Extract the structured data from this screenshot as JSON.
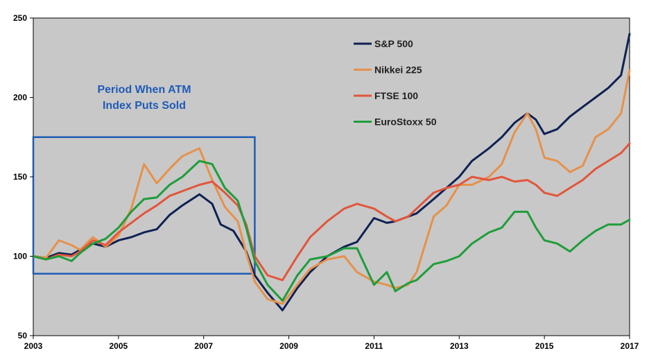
{
  "chart_data": {
    "type": "line",
    "x_unit": "year",
    "xlim": [
      2003,
      2017
    ],
    "ylim": [
      50,
      250
    ],
    "x_ticks": [
      "2003",
      "2005",
      "2007",
      "2009",
      "2011",
      "2013",
      "2015",
      "2017"
    ],
    "y_ticks": [
      "50",
      "100",
      "150",
      "200",
      "250"
    ],
    "grid": false,
    "background": "#c8c8c8",
    "legend_position": "top-center",
    "annotation": {
      "lines": [
        "Period When ATM",
        "Index Puts Sold"
      ],
      "region_x": [
        2003,
        2008.2
      ],
      "region_y": [
        89,
        175
      ],
      "color": "#1f5bb5"
    },
    "series": [
      {
        "name": "S&P 500",
        "color": "#0e2154",
        "points": [
          [
            2003.0,
            100
          ],
          [
            2003.3,
            99
          ],
          [
            2003.6,
            102
          ],
          [
            2003.9,
            101
          ],
          [
            2004.1,
            104
          ],
          [
            2004.4,
            108
          ],
          [
            2004.7,
            106
          ],
          [
            2005.0,
            110
          ],
          [
            2005.3,
            112
          ],
          [
            2005.6,
            115
          ],
          [
            2005.9,
            117
          ],
          [
            2006.2,
            126
          ],
          [
            2006.5,
            132
          ],
          [
            2006.9,
            139
          ],
          [
            2007.2,
            133
          ],
          [
            2007.4,
            120
          ],
          [
            2007.7,
            116
          ],
          [
            2008.0,
            103
          ],
          [
            2008.2,
            88
          ],
          [
            2008.5,
            77
          ],
          [
            2008.85,
            66
          ],
          [
            2009.2,
            80
          ],
          [
            2009.5,
            90
          ],
          [
            2009.9,
            100
          ],
          [
            2010.3,
            106
          ],
          [
            2010.6,
            109
          ],
          [
            2011.0,
            124
          ],
          [
            2011.3,
            121
          ],
          [
            2011.5,
            122
          ],
          [
            2011.8,
            125
          ],
          [
            2012.0,
            127
          ],
          [
            2012.4,
            136
          ],
          [
            2012.7,
            143
          ],
          [
            2013.0,
            150
          ],
          [
            2013.3,
            160
          ],
          [
            2013.7,
            168
          ],
          [
            2014.0,
            175
          ],
          [
            2014.3,
            184
          ],
          [
            2014.6,
            190
          ],
          [
            2014.8,
            186
          ],
          [
            2015.0,
            177
          ],
          [
            2015.3,
            180
          ],
          [
            2015.6,
            188
          ],
          [
            2015.9,
            194
          ],
          [
            2016.2,
            200
          ],
          [
            2016.5,
            206
          ],
          [
            2016.8,
            214
          ],
          [
            2017.0,
            240
          ]
        ]
      },
      {
        "name": "Nikkei 225",
        "color": "#e6914a",
        "points": [
          [
            2003.0,
            100
          ],
          [
            2003.3,
            99
          ],
          [
            2003.6,
            110
          ],
          [
            2003.9,
            107
          ],
          [
            2004.1,
            104
          ],
          [
            2004.4,
            112
          ],
          [
            2004.7,
            106
          ],
          [
            2005.0,
            113
          ],
          [
            2005.3,
            130
          ],
          [
            2005.6,
            158
          ],
          [
            2005.9,
            146
          ],
          [
            2006.2,
            155
          ],
          [
            2006.5,
            163
          ],
          [
            2006.9,
            168
          ],
          [
            2007.2,
            148
          ],
          [
            2007.5,
            131
          ],
          [
            2007.8,
            122
          ],
          [
            2008.0,
            102
          ],
          [
            2008.2,
            84
          ],
          [
            2008.5,
            73
          ],
          [
            2008.85,
            70
          ],
          [
            2009.2,
            82
          ],
          [
            2009.5,
            92
          ],
          [
            2009.9,
            98
          ],
          [
            2010.3,
            100
          ],
          [
            2010.6,
            90
          ],
          [
            2011.0,
            84
          ],
          [
            2011.3,
            82
          ],
          [
            2011.5,
            80
          ],
          [
            2011.8,
            82
          ],
          [
            2012.0,
            90
          ],
          [
            2012.4,
            125
          ],
          [
            2012.7,
            132
          ],
          [
            2013.0,
            145
          ],
          [
            2013.3,
            145
          ],
          [
            2013.7,
            150
          ],
          [
            2014.0,
            158
          ],
          [
            2014.3,
            178
          ],
          [
            2014.6,
            190
          ],
          [
            2014.8,
            180
          ],
          [
            2015.0,
            162
          ],
          [
            2015.3,
            160
          ],
          [
            2015.6,
            153
          ],
          [
            2015.9,
            157
          ],
          [
            2016.2,
            175
          ],
          [
            2016.5,
            180
          ],
          [
            2016.8,
            190
          ],
          [
            2017.0,
            217
          ]
        ]
      },
      {
        "name": "FTSE 100",
        "color": "#e2553b",
        "points": [
          [
            2003.0,
            100
          ],
          [
            2003.3,
            98
          ],
          [
            2003.6,
            101
          ],
          [
            2003.9,
            100
          ],
          [
            2004.1,
            103
          ],
          [
            2004.4,
            110
          ],
          [
            2004.7,
            107
          ],
          [
            2005.0,
            115
          ],
          [
            2005.3,
            121
          ],
          [
            2005.6,
            127
          ],
          [
            2005.9,
            132
          ],
          [
            2006.2,
            138
          ],
          [
            2006.5,
            141
          ],
          [
            2006.9,
            145
          ],
          [
            2007.2,
            147
          ],
          [
            2007.5,
            140
          ],
          [
            2007.8,
            132
          ],
          [
            2008.0,
            120
          ],
          [
            2008.2,
            100
          ],
          [
            2008.5,
            88
          ],
          [
            2008.85,
            85
          ],
          [
            2009.2,
            100
          ],
          [
            2009.5,
            112
          ],
          [
            2009.9,
            122
          ],
          [
            2010.3,
            130
          ],
          [
            2010.6,
            133
          ],
          [
            2011.0,
            130
          ],
          [
            2011.3,
            125
          ],
          [
            2011.5,
            122
          ],
          [
            2011.8,
            125
          ],
          [
            2012.0,
            130
          ],
          [
            2012.4,
            140
          ],
          [
            2012.7,
            143
          ],
          [
            2013.0,
            145
          ],
          [
            2013.3,
            150
          ],
          [
            2013.7,
            148
          ],
          [
            2014.0,
            150
          ],
          [
            2014.3,
            147
          ],
          [
            2014.6,
            148
          ],
          [
            2014.8,
            145
          ],
          [
            2015.0,
            140
          ],
          [
            2015.3,
            138
          ],
          [
            2015.6,
            143
          ],
          [
            2015.9,
            148
          ],
          [
            2016.2,
            155
          ],
          [
            2016.5,
            160
          ],
          [
            2016.8,
            165
          ],
          [
            2017.0,
            171
          ]
        ]
      },
      {
        "name": "EuroStoxx 50",
        "color": "#1e9d3a",
        "points": [
          [
            2003.0,
            100
          ],
          [
            2003.3,
            98
          ],
          [
            2003.6,
            100
          ],
          [
            2003.9,
            97
          ],
          [
            2004.1,
            102
          ],
          [
            2004.4,
            108
          ],
          [
            2004.7,
            111
          ],
          [
            2005.0,
            118
          ],
          [
            2005.3,
            128
          ],
          [
            2005.6,
            136
          ],
          [
            2005.9,
            137
          ],
          [
            2006.2,
            145
          ],
          [
            2006.5,
            150
          ],
          [
            2006.9,
            160
          ],
          [
            2007.2,
            158
          ],
          [
            2007.5,
            143
          ],
          [
            2007.8,
            135
          ],
          [
            2008.0,
            118
          ],
          [
            2008.2,
            97
          ],
          [
            2008.5,
            82
          ],
          [
            2008.85,
            72
          ],
          [
            2009.2,
            88
          ],
          [
            2009.5,
            98
          ],
          [
            2009.9,
            100
          ],
          [
            2010.3,
            105
          ],
          [
            2010.6,
            105
          ],
          [
            2011.0,
            82
          ],
          [
            2011.3,
            90
          ],
          [
            2011.5,
            78
          ],
          [
            2011.8,
            83
          ],
          [
            2012.0,
            85
          ],
          [
            2012.4,
            95
          ],
          [
            2012.7,
            97
          ],
          [
            2013.0,
            100
          ],
          [
            2013.3,
            108
          ],
          [
            2013.7,
            115
          ],
          [
            2014.0,
            118
          ],
          [
            2014.3,
            128
          ],
          [
            2014.6,
            128
          ],
          [
            2014.8,
            118
          ],
          [
            2015.0,
            110
          ],
          [
            2015.3,
            108
          ],
          [
            2015.6,
            103
          ],
          [
            2015.9,
            110
          ],
          [
            2016.2,
            116
          ],
          [
            2016.5,
            120
          ],
          [
            2016.8,
            120
          ],
          [
            2017.0,
            123
          ]
        ]
      }
    ]
  }
}
